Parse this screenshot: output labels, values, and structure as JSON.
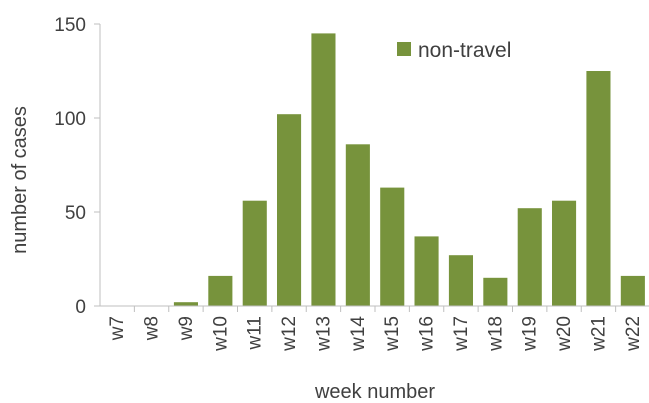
{
  "chart_data": {
    "type": "bar",
    "categories": [
      "w7",
      "w8",
      "w9",
      "w10",
      "w11",
      "w12",
      "w13",
      "w14",
      "w15",
      "w16",
      "w17",
      "w18",
      "w19",
      "w20",
      "w21",
      "w22"
    ],
    "series": [
      {
        "name": "non-travel",
        "color": "#77933c",
        "values": [
          0,
          0,
          2,
          16,
          56,
          102,
          145,
          86,
          63,
          37,
          27,
          15,
          52,
          56,
          125,
          16
        ]
      }
    ],
    "xlabel": "week number",
    "ylabel": "number of cases",
    "ylim": [
      0,
      150
    ],
    "yticks": [
      0,
      50,
      100,
      150
    ],
    "legend_position": "top-right",
    "grid": false
  }
}
